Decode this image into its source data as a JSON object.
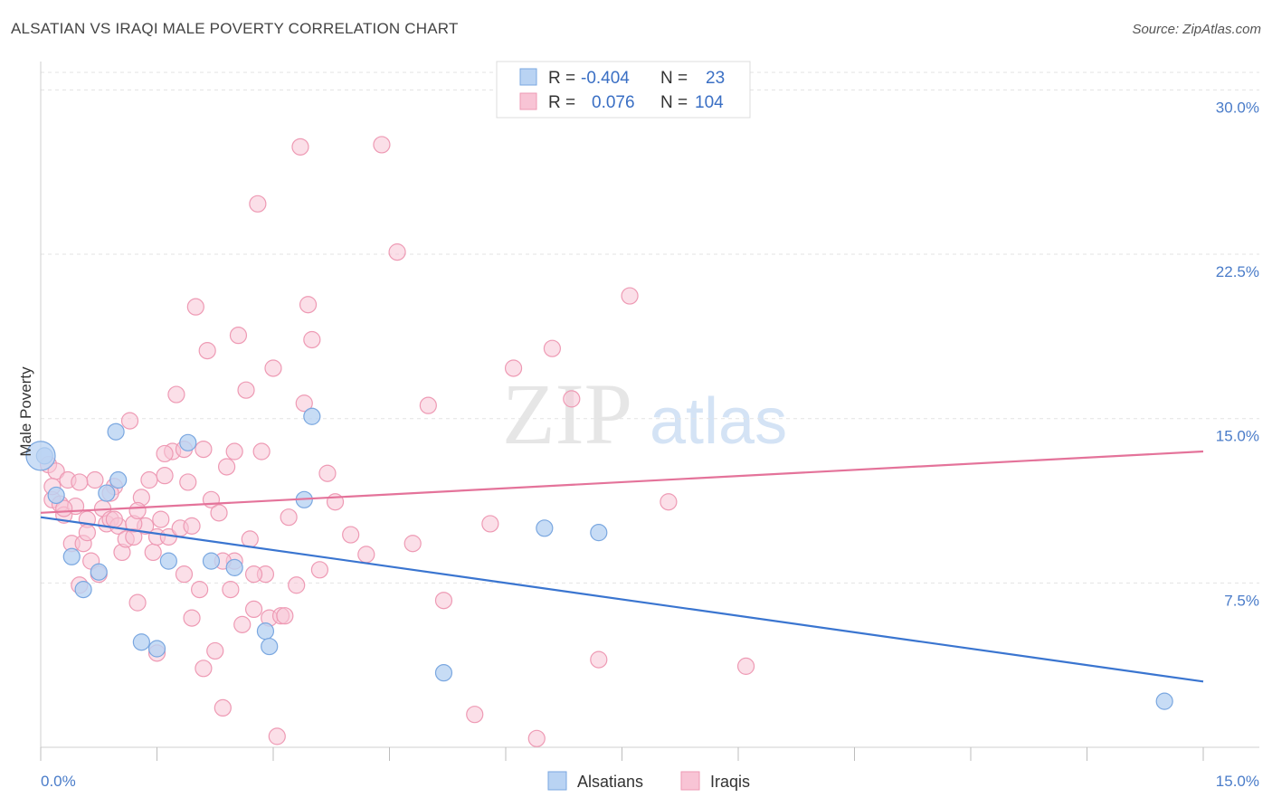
{
  "header": {
    "title": "ALSATIAN VS IRAQI MALE POVERTY CORRELATION CHART",
    "source": "Source: ZipAtlas.com"
  },
  "watermark": {
    "zip": "ZIP",
    "atlas": "atlas"
  },
  "colors": {
    "alsatian_fill": "#b9d3f3",
    "alsatian_stroke": "#7aa7e0",
    "alsatian_line": "#3a75d0",
    "iraqi_fill": "#f8c4d5",
    "iraqi_stroke": "#ee9ab4",
    "iraqi_line": "#e4739a",
    "tick_label": "#4a7cc9",
    "grid": "#e3e3e3"
  },
  "legend": {
    "rows": [
      {
        "r_label": "R =",
        "r_value": "-0.404",
        "n_label": "N =",
        "n_value": "23"
      },
      {
        "r_label": "R =",
        "r_value": "0.076",
        "n_label": "N =",
        "n_value": "104"
      }
    ]
  },
  "chart_data": {
    "type": "scatter",
    "title": "ALSATIAN VS IRAQI MALE POVERTY CORRELATION CHART",
    "xlabel": "",
    "ylabel": "Male Poverty",
    "xlim": [
      0,
      15
    ],
    "ylim": [
      0,
      30.8
    ],
    "x_tick_labels": [
      "0.0%",
      "15.0%"
    ],
    "y_ticks": [
      7.5,
      15.0,
      22.5,
      30.0
    ],
    "y_tick_labels": [
      "7.5%",
      "15.0%",
      "22.5%",
      "30.0%"
    ],
    "grid": true,
    "legend_position": "bottom-center",
    "series": [
      {
        "name": "Alsatians",
        "r": -0.404,
        "n": 23,
        "trend": {
          "x": [
            0,
            15
          ],
          "y": [
            10.5,
            3.0
          ]
        },
        "points": [
          [
            0.05,
            13.3
          ],
          [
            0.2,
            11.5
          ],
          [
            0.4,
            8.7
          ],
          [
            0.55,
            7.2
          ],
          [
            0.75,
            8.0
          ],
          [
            0.85,
            11.6
          ],
          [
            1.0,
            12.2
          ],
          [
            0.97,
            14.4
          ],
          [
            1.3,
            4.8
          ],
          [
            1.5,
            4.5
          ],
          [
            1.65,
            8.5
          ],
          [
            1.9,
            13.9
          ],
          [
            2.2,
            8.5
          ],
          [
            2.5,
            8.2
          ],
          [
            2.9,
            5.3
          ],
          [
            2.95,
            4.6
          ],
          [
            3.4,
            11.3
          ],
          [
            3.5,
            15.1
          ],
          [
            5.2,
            3.4
          ],
          [
            6.5,
            10.0
          ],
          [
            7.2,
            9.8
          ],
          [
            14.5,
            2.1
          ],
          [
            0.0,
            13.3
          ]
        ]
      },
      {
        "name": "Iraqis",
        "r": 0.076,
        "n": 104,
        "trend": {
          "x": [
            0,
            15
          ],
          "y": [
            10.7,
            13.5
          ]
        },
        "points": [
          [
            0.1,
            12.9
          ],
          [
            0.15,
            11.3
          ],
          [
            0.2,
            12.6
          ],
          [
            0.25,
            11.1
          ],
          [
            0.3,
            10.6
          ],
          [
            0.35,
            12.2
          ],
          [
            0.4,
            9.3
          ],
          [
            0.45,
            11.0
          ],
          [
            0.5,
            7.4
          ],
          [
            0.55,
            9.3
          ],
          [
            0.6,
            10.4
          ],
          [
            0.65,
            8.5
          ],
          [
            0.7,
            12.2
          ],
          [
            0.75,
            7.9
          ],
          [
            0.8,
            10.9
          ],
          [
            0.85,
            10.2
          ],
          [
            0.9,
            10.4
          ],
          [
            0.95,
            11.9
          ],
          [
            1.0,
            10.1
          ],
          [
            1.05,
            8.9
          ],
          [
            1.1,
            9.5
          ],
          [
            1.15,
            14.9
          ],
          [
            1.2,
            9.6
          ],
          [
            1.25,
            6.6
          ],
          [
            1.3,
            11.4
          ],
          [
            1.35,
            10.1
          ],
          [
            1.4,
            12.2
          ],
          [
            1.45,
            8.9
          ],
          [
            1.5,
            9.6
          ],
          [
            1.55,
            10.4
          ],
          [
            1.6,
            12.4
          ],
          [
            1.65,
            9.6
          ],
          [
            1.7,
            13.5
          ],
          [
            1.75,
            16.1
          ],
          [
            1.8,
            10.0
          ],
          [
            1.85,
            7.9
          ],
          [
            1.9,
            12.1
          ],
          [
            1.95,
            5.9
          ],
          [
            2.0,
            20.1
          ],
          [
            2.05,
            7.2
          ],
          [
            2.1,
            13.6
          ],
          [
            2.15,
            18.1
          ],
          [
            2.2,
            11.3
          ],
          [
            2.25,
            4.4
          ],
          [
            2.3,
            10.7
          ],
          [
            2.35,
            1.8
          ],
          [
            2.4,
            12.8
          ],
          [
            2.45,
            7.2
          ],
          [
            2.5,
            8.5
          ],
          [
            2.55,
            18.8
          ],
          [
            2.6,
            5.6
          ],
          [
            2.65,
            16.3
          ],
          [
            2.7,
            9.5
          ],
          [
            2.75,
            6.3
          ],
          [
            2.8,
            24.8
          ],
          [
            2.85,
            13.5
          ],
          [
            2.9,
            7.9
          ],
          [
            2.95,
            5.9
          ],
          [
            3.0,
            17.3
          ],
          [
            3.05,
            0.5
          ],
          [
            3.1,
            6.0
          ],
          [
            3.2,
            10.5
          ],
          [
            3.3,
            7.4
          ],
          [
            3.35,
            27.4
          ],
          [
            3.4,
            15.7
          ],
          [
            3.45,
            20.2
          ],
          [
            3.5,
            18.6
          ],
          [
            3.6,
            8.1
          ],
          [
            3.7,
            12.5
          ],
          [
            3.8,
            11.2
          ],
          [
            4.0,
            9.7
          ],
          [
            4.2,
            8.8
          ],
          [
            4.4,
            27.5
          ],
          [
            4.6,
            22.6
          ],
          [
            4.8,
            9.3
          ],
          [
            5.0,
            15.6
          ],
          [
            5.2,
            6.7
          ],
          [
            5.6,
            1.5
          ],
          [
            5.8,
            10.2
          ],
          [
            6.1,
            17.3
          ],
          [
            6.4,
            0.4
          ],
          [
            6.6,
            18.2
          ],
          [
            6.85,
            15.9
          ],
          [
            7.2,
            4.0
          ],
          [
            7.6,
            20.6
          ],
          [
            8.1,
            11.2
          ],
          [
            9.1,
            3.7
          ],
          [
            1.5,
            4.3
          ],
          [
            1.2,
            10.2
          ],
          [
            0.9,
            11.6
          ],
          [
            2.1,
            3.6
          ],
          [
            1.6,
            13.4
          ],
          [
            0.3,
            10.9
          ],
          [
            2.35,
            8.5
          ],
          [
            1.85,
            13.6
          ],
          [
            0.6,
            9.8
          ],
          [
            3.15,
            6.0
          ],
          [
            1.25,
            10.8
          ],
          [
            2.75,
            7.9
          ],
          [
            0.95,
            10.4
          ],
          [
            0.5,
            12.1
          ],
          [
            1.95,
            10.1
          ],
          [
            2.5,
            13.5
          ],
          [
            0.15,
            11.9
          ]
        ]
      }
    ]
  },
  "bottom_legend": {
    "items": [
      "Alsatians",
      "Iraqis"
    ]
  }
}
